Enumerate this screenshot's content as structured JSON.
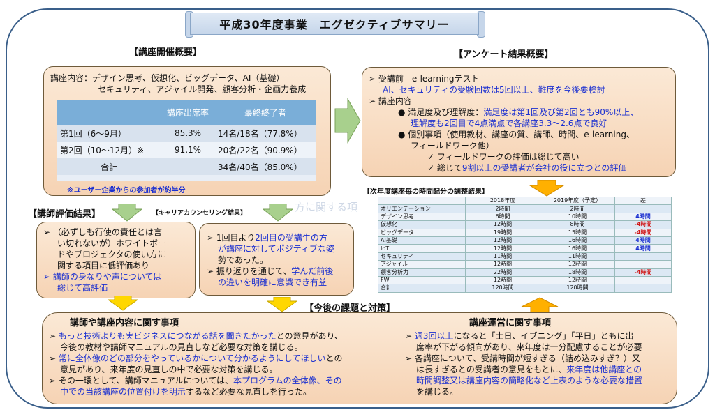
{
  "title": "平成30年度事業　エグゼクティブサマリー",
  "course_overview": {
    "header": "【講座開催概要】",
    "content_line1": "講座内容：デザイン思考、仮想化、ビッグデータ、AI（基礎）",
    "content_line2": "セキュリティ、アジャイル開発、顧客分析・企画力養成",
    "table_headers": [
      "",
      "講座出席率",
      "最終終了者"
    ],
    "rows": [
      [
        "第1回（6〜9月）",
        "85.3%",
        "14名/18名（77.8%）"
      ],
      [
        "第2回（10〜12月）※",
        "91.1%",
        "20名/22名（90.9%）"
      ],
      [
        "合計",
        "",
        "34名/40名（85.0%）"
      ]
    ],
    "note": "※ユーザー企業からの参加者が約半分"
  },
  "survey": {
    "header": "【アンケート結果概要】",
    "item1": "受講前　e-learningテスト",
    "item1_detail": "AI、セキュリティの受験回数は5回以上、難度を今後要検討",
    "item2": "講座内容",
    "sub1_a": "満足度及び理解度：",
    "sub1_b": "満足度は第1回及び第2回とも90%以上、",
    "sub1_c": "理解度も2回目で4点満点で各講座3.3〜2.6点で良好",
    "sub2_a": "個別事項（使用教材、講座の質、講師、時間、e-learning、",
    "sub2_b": "フィールドワーク他）",
    "check1": "フィールドワークの評価は総じて高い",
    "check2a": "総じて",
    "check2b": "9割以上の受講者が会社の役に立つとの評価"
  },
  "instructor_eval": {
    "header": "【講師評価結果】",
    "line1": "（必ずしも行使の責任とは言",
    "line2": "い切れないが）ホワイトボー",
    "line3": "ドやプロジェクタの使い方に",
    "line4": "関する項目に低評価あり",
    "line5": "講師の身なりや声については",
    "line6": "総じて高評価"
  },
  "career": {
    "header": "【キャリアカウンセリング結果】",
    "line1a": "1回目より",
    "line1b": "2回目の受講生の方",
    "line2": "が講座に対してポジティブな姿",
    "line3": "勢であった。",
    "line4a": "振り返りを通じて、",
    "line4b": "学んだ前後",
    "line5": "の違いを明確に意識でき有益"
  },
  "time_table": {
    "header": "【次年度講座毎の時間配分の調整結果】",
    "watermark": "方に関する項",
    "col_headers": [
      "",
      "2018年度",
      "2019年度（予定）",
      "差"
    ],
    "rows": [
      [
        "オリエンテーション",
        "2時間",
        "2時間",
        ""
      ],
      [
        "デザイン思考",
        "6時間",
        "10時間",
        "4時間"
      ],
      [
        "仮想化",
        "12時間",
        "8時間",
        "-4時間"
      ],
      [
        "ビッグデータ",
        "19時間",
        "15時間",
        "-4時間"
      ],
      [
        "AI基礎",
        "12時間",
        "16時間",
        "4時間"
      ],
      [
        "IoT",
        "12時間",
        "16時間",
        "4時間"
      ],
      [
        "セキュリティ",
        "11時間",
        "11時間",
        ""
      ],
      [
        "アジャイル",
        "12時間",
        "12時間",
        ""
      ],
      [
        "顧客分析力",
        "22時間",
        "18時間",
        "-4時間"
      ],
      [
        "FW",
        "12時間",
        "12時間",
        ""
      ],
      [
        "合計",
        "120時間",
        "120時間",
        ""
      ]
    ]
  },
  "issues": {
    "header": "【今後の課題と対策】",
    "left_title": "講師や講座内容に関す事項",
    "l1a": "もっと技術よりも実ビジネスにつながる話を聞きたかった",
    "l1b": "との意見があり、",
    "l1c": "今後の教材や講師マニュアルの見直しなど必要な対策を講じる。",
    "l2a": "常に全体像のどの部分をやっているかについて分かるようにしてほしい",
    "l2b": "との",
    "l2c": "意見があり、来年度の見直しの中で必要な対策を講じる。",
    "l3a": "その一環として、講師マニュアルについては、",
    "l3b": "本プログラムの全体像、その",
    "l3c": "中での当該講座の位置付けを明示",
    "l3d": "するなど必要な見直しを行った。",
    "right_title": "講座運営に関す事項",
    "r1a": "週3回以上",
    "r1b": "になると「土日、イブニング」「平日」ともに出",
    "r1c": "席率が下がる傾向があり、来年度は十分配慮することが必要",
    "r2a": "各講座について、受講時間が短すぎる（詰め込みすぎ？）又",
    "r2b": "は長すぎるとの受講者の意見をもとに、",
    "r2c": "来年度は他講座との",
    "r2d": "時間調整又は講座内容の簡略化など上表のような必要な措置",
    "r2e": "を講じる。"
  },
  "colors": {
    "blue_text": "#1a2fd0",
    "red_text": "#d01818",
    "box_fill": "#f6d3b4",
    "arrow_green": "#a8d08d",
    "arrow_yellow": "#ffd700",
    "arrow_orange": "#ffb000"
  }
}
